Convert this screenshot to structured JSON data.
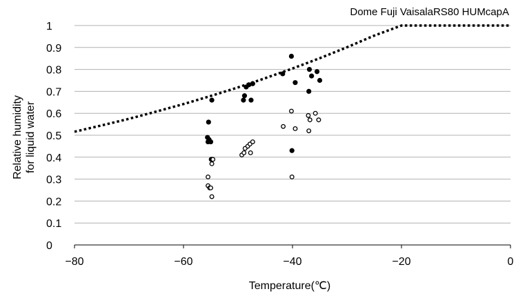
{
  "chart_data": {
    "type": "scatter",
    "title": "Dome Fuji VaisalaRS80 HUMcapA",
    "xlabel": "Temperature(℃)",
    "ylabel_lines": [
      "Relative humidity",
      "for liquid water"
    ],
    "xlim": [
      -80,
      0
    ],
    "ylim": [
      0,
      1
    ],
    "x_ticks": [
      "-80",
      "-60",
      "-40",
      "-20",
      "0"
    ],
    "y_ticks": [
      "0",
      "0.1",
      "0.2",
      "0.3",
      "0.4",
      "0.5",
      "0.6",
      "0.7",
      "0.8",
      "0.9",
      "1"
    ],
    "x_tick_values": [
      -80,
      -60,
      -40,
      -20,
      0
    ],
    "y_tick_values": [
      0,
      0.1,
      0.2,
      0.3,
      0.4,
      0.5,
      0.6,
      0.7,
      0.8,
      0.9,
      1
    ],
    "grid": "horizontal",
    "series": [
      {
        "marker": "filled-circle",
        "color": "#000000",
        "points": [
          [
            -55.5,
            0.47
          ],
          [
            -55.6,
            0.49
          ],
          [
            -55.3,
            0.48
          ],
          [
            -55.0,
            0.47
          ],
          [
            -55.4,
            0.56
          ],
          [
            -54.8,
            0.66
          ],
          [
            -54.9,
            0.39
          ],
          [
            -49.0,
            0.66
          ],
          [
            -48.8,
            0.68
          ],
          [
            -48.5,
            0.72
          ],
          [
            -48.0,
            0.73
          ],
          [
            -47.6,
            0.66
          ],
          [
            -47.3,
            0.735
          ],
          [
            -41.8,
            0.78
          ],
          [
            -40.2,
            0.86
          ],
          [
            -39.5,
            0.74
          ],
          [
            -40.1,
            0.43
          ],
          [
            -37.0,
            0.7
          ],
          [
            -36.9,
            0.8
          ],
          [
            -36.5,
            0.77
          ],
          [
            -35.5,
            0.79
          ],
          [
            -35.0,
            0.75
          ]
        ]
      },
      {
        "marker": "open-circle",
        "color": "#000000",
        "points": [
          [
            -55.5,
            0.31
          ],
          [
            -55.5,
            0.27
          ],
          [
            -55.2,
            0.26
          ],
          [
            -55.0,
            0.26
          ],
          [
            -54.8,
            0.22
          ],
          [
            -54.8,
            0.37
          ],
          [
            -54.6,
            0.39
          ],
          [
            -49.3,
            0.41
          ],
          [
            -48.9,
            0.42
          ],
          [
            -48.7,
            0.44
          ],
          [
            -48.2,
            0.45
          ],
          [
            -47.8,
            0.46
          ],
          [
            -47.3,
            0.47
          ],
          [
            -47.7,
            0.42
          ],
          [
            -41.7,
            0.54
          ],
          [
            -40.2,
            0.61
          ],
          [
            -39.5,
            0.53
          ],
          [
            -40.1,
            0.31
          ],
          [
            -37.1,
            0.59
          ],
          [
            -37.0,
            0.52
          ],
          [
            -36.8,
            0.57
          ],
          [
            -35.8,
            0.6
          ],
          [
            -35.2,
            0.57
          ]
        ]
      },
      {
        "type": "line",
        "style": "dotted",
        "color": "#000000",
        "formula": "ice saturation over liquid water",
        "x": [
          -80,
          -75,
          -70,
          -65,
          -60,
          -55,
          -50,
          -45,
          -40,
          -35,
          -30,
          -25,
          -20,
          -15,
          -10,
          -5,
          0
        ],
        "y": [
          0.516,
          0.545,
          0.575,
          0.608,
          0.642,
          0.679,
          0.718,
          0.76,
          0.804,
          0.851,
          0.901,
          0.954,
          1.0,
          1.0,
          1.0,
          1.0,
          1.0
        ]
      }
    ]
  }
}
